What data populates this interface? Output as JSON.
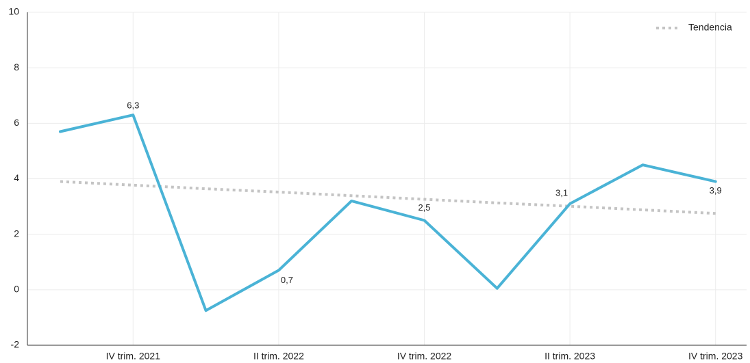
{
  "chart_data": {
    "type": "line",
    "categories": [
      null,
      "IV trim. 2021",
      null,
      "II trim. 2022",
      null,
      "IV trim. 2022",
      null,
      "II trim. 2023",
      null,
      "IV trim. 2023"
    ],
    "series": [
      {
        "color": "#4ab3d6",
        "values": [
          5.7,
          6.3,
          -0.75,
          0.7,
          3.2,
          2.5,
          0.05,
          3.1,
          4.5,
          3.9
        ],
        "value_labels": [
          null,
          "6,3",
          null,
          "0,7",
          null,
          "2,5",
          null,
          "3,1",
          null,
          "3,9"
        ]
      },
      {
        "name": "Tendencia",
        "color": "#c4c4c4",
        "dashed": true,
        "values": [
          3.9,
          3.77,
          3.64,
          3.52,
          3.39,
          3.26,
          3.13,
          3.01,
          2.88,
          2.75
        ]
      }
    ],
    "ylim": [
      -2,
      10
    ],
    "yticks": [
      -2,
      0,
      2,
      4,
      6,
      8,
      10
    ],
    "grid": true,
    "legend": "top-right"
  }
}
